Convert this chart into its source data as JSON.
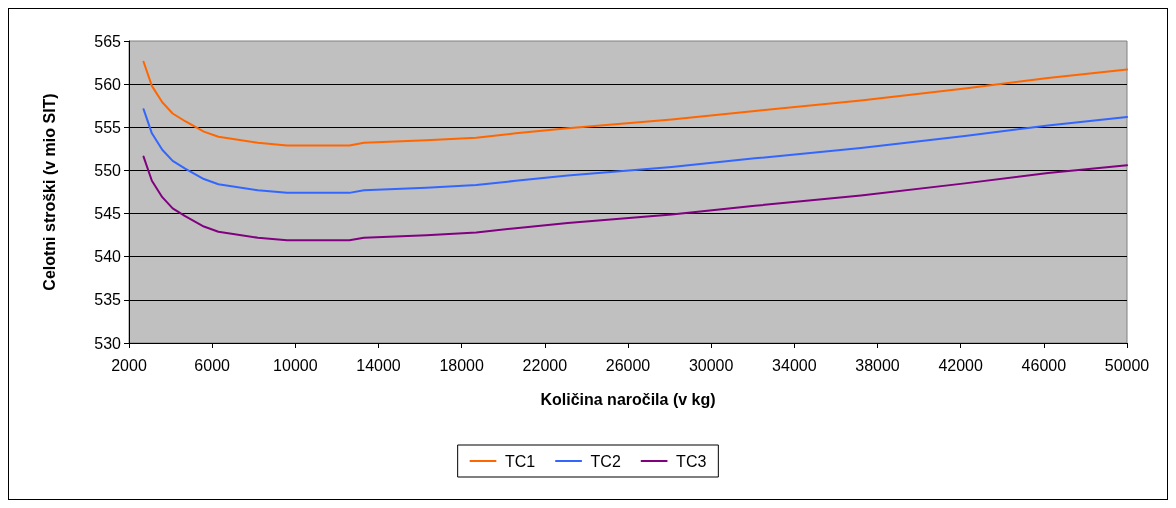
{
  "chart_data": {
    "type": "line",
    "xlabel": "Količina naročila (v kg)",
    "ylabel": "Celotni stroški (v mio SIT)",
    "x": [
      2700,
      3100,
      3600,
      4100,
      4700,
      5600,
      6300,
      8200,
      9600,
      12600,
      13300,
      16300,
      18700,
      20600,
      23100,
      28100,
      32100,
      37200,
      42200,
      46200,
      50000
    ],
    "series": [
      {
        "name": "TC1",
        "color": "#ff6600",
        "values": [
          562.6,
          559.8,
          557.9,
          556.6,
          555.7,
          554.5,
          553.9,
          553.2,
          552.9,
          552.9,
          553.2,
          553.5,
          553.8,
          554.3,
          554.9,
          555.9,
          556.9,
          558.1,
          559.5,
          560.7,
          561.7
        ]
      },
      {
        "name": "TC2",
        "color": "#3366ff",
        "values": [
          557.1,
          554.3,
          552.4,
          551.1,
          550.2,
          549.0,
          548.4,
          547.7,
          547.4,
          547.4,
          547.7,
          548.0,
          548.3,
          548.8,
          549.4,
          550.4,
          551.4,
          552.6,
          554.0,
          555.2,
          556.2
        ]
      },
      {
        "name": "TC3",
        "color": "#800080",
        "values": [
          551.6,
          548.8,
          546.9,
          545.6,
          544.7,
          543.5,
          542.9,
          542.2,
          541.9,
          541.9,
          542.2,
          542.5,
          542.8,
          543.3,
          543.9,
          544.9,
          545.9,
          547.1,
          548.5,
          549.7,
          550.6
        ]
      }
    ],
    "xlim": [
      2000,
      50000
    ],
    "xticks": [
      2000,
      6000,
      10000,
      14000,
      18000,
      22000,
      26000,
      30000,
      34000,
      38000,
      42000,
      46000,
      50000
    ],
    "ylim": [
      530,
      565
    ],
    "yticks": [
      530,
      535,
      540,
      545,
      550,
      555,
      560,
      565
    ],
    "grid": "y",
    "legend": "bottom",
    "marker": "none",
    "line_style": "solid"
  }
}
